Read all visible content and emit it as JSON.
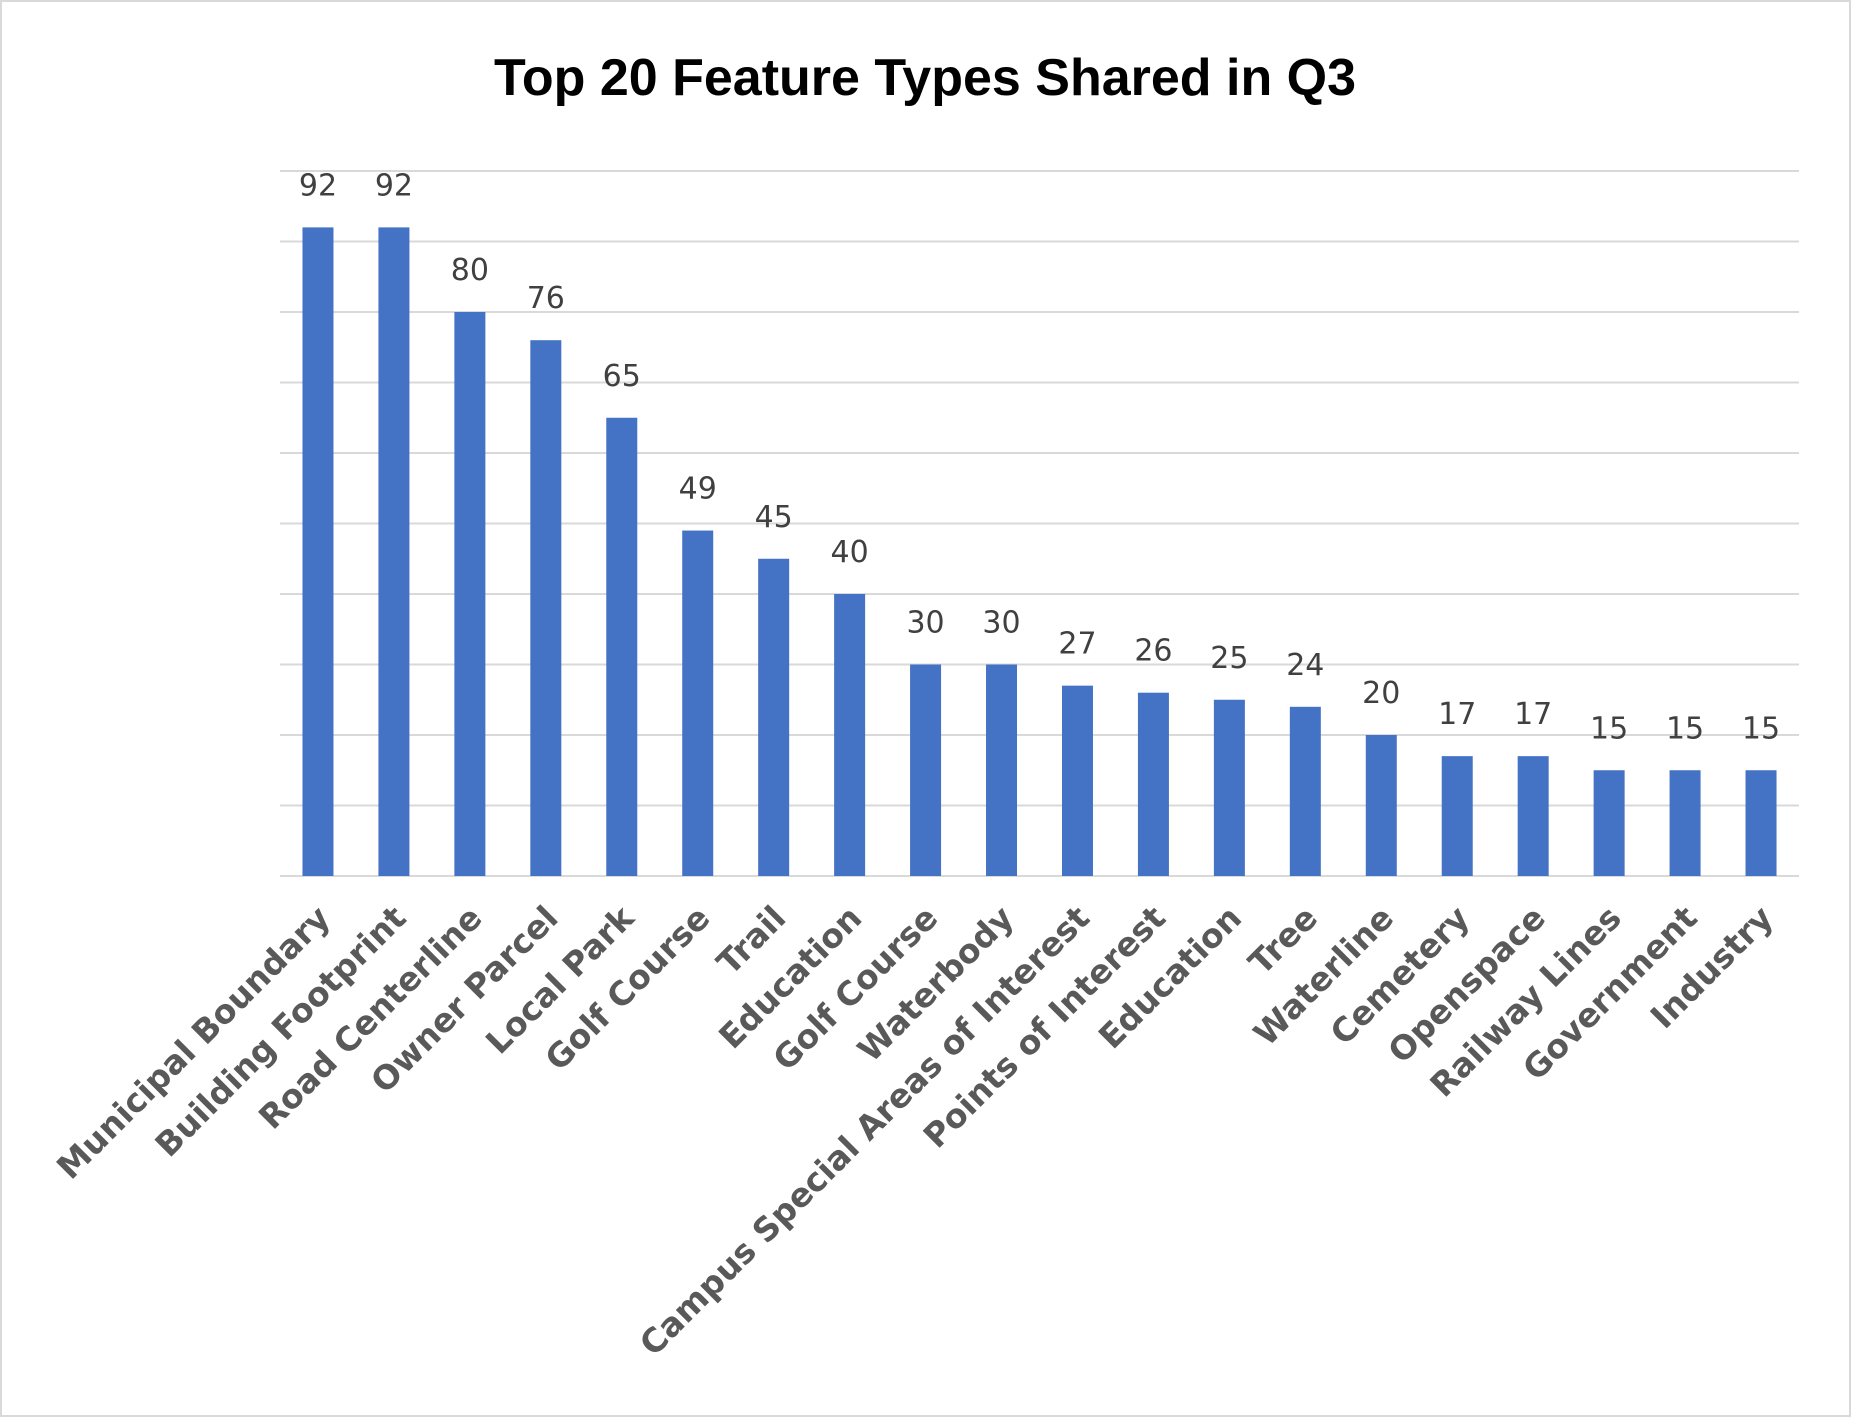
{
  "chart_data": {
    "type": "bar",
    "title": "Top 20 Feature Types Shared in Q3",
    "xlabel": "",
    "ylabel": "",
    "ylim": [
      0,
      100
    ],
    "grid": true,
    "gridline_step": 10,
    "legend": "none",
    "bar_color": "#4472C4",
    "categories": [
      "Municipal Boundary",
      "Building Footprint",
      "Road Centerline",
      "Owner Parcel",
      "Local Park",
      "Golf Course",
      "Trail",
      "Education",
      "Golf Course",
      "Waterbody",
      "Campus Special Areas of Interest",
      "Points of Interest",
      "Education",
      "Tree",
      "Waterline",
      "Cemetery",
      "Openspace",
      "Railway Lines",
      "Government",
      "Industry"
    ],
    "values": [
      92,
      92,
      80,
      76,
      65,
      49,
      45,
      40,
      30,
      30,
      27,
      26,
      25,
      24,
      20,
      17,
      17,
      15,
      15,
      15
    ]
  }
}
